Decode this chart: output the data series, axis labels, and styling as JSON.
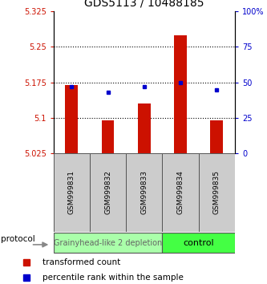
{
  "title": "GDS5113 / 10488185",
  "samples": [
    "GSM999831",
    "GSM999832",
    "GSM999833",
    "GSM999834",
    "GSM999835"
  ],
  "red_values": [
    5.17,
    5.095,
    5.13,
    5.275,
    5.095
  ],
  "blue_values": [
    47,
    43,
    47,
    50,
    45
  ],
  "ylim_left": [
    5.025,
    5.325
  ],
  "ylim_right": [
    0,
    100
  ],
  "yticks_left": [
    5.025,
    5.1,
    5.175,
    5.25,
    5.325
  ],
  "yticks_right": [
    0,
    25,
    50,
    75,
    100
  ],
  "ytick_labels_left": [
    "5.025",
    "5.1",
    "5.175",
    "5.25",
    "5.325"
  ],
  "ytick_labels_right": [
    "0",
    "25",
    "50",
    "75",
    "100%"
  ],
  "hlines": [
    5.1,
    5.175,
    5.25
  ],
  "bar_color": "#cc1100",
  "dot_color": "#0000cc",
  "base_value": 5.025,
  "group0_label": "Grainyhead-like 2 depletion",
  "group0_color": "#aaffaa",
  "group0_text_color": "#666666",
  "group1_label": "control",
  "group1_color": "#44ff44",
  "group1_text_color": "#000000",
  "protocol_label": "protocol",
  "legend_red": "transformed count",
  "legend_blue": "percentile rank within the sample",
  "title_fontsize": 10,
  "tick_fontsize": 7,
  "sample_fontsize": 6.5,
  "group_fontsize": 7,
  "legend_fontsize": 7.5,
  "bg_color": "#ffffff",
  "plot_bg": "#ffffff",
  "bar_width": 0.35
}
